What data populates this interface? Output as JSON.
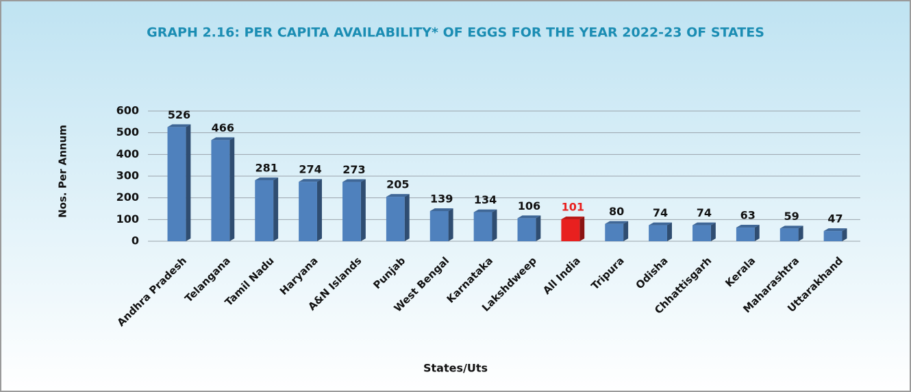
{
  "chart_data": {
    "type": "bar",
    "title": "GRAPH 2.16: PER CAPITA AVAILABILITY* OF EGGS FOR THE YEAR  2022-23 OF STATES",
    "xlabel": "States/Uts",
    "ylabel": "Nos. Per Annum",
    "categories": [
      "Andhra Pradesh",
      "Telangana",
      "Tamil Nadu",
      "Haryana",
      "A&N Islands",
      "Punjab",
      "West Bengal",
      "Karnataka",
      "Lakshdweep",
      "All India",
      "Tripura",
      "Odisha",
      "Chhattisgarh",
      "Kerala",
      "Maharashtra",
      "Uttarakhand"
    ],
    "values": [
      526,
      466,
      281,
      274,
      273,
      205,
      139,
      134,
      106,
      101,
      80,
      74,
      74,
      63,
      59,
      47
    ],
    "color": "#4f81bd",
    "colors": [
      "#4f81bd",
      "#4f81bd",
      "#4f81bd",
      "#4f81bd",
      "#4f81bd",
      "#4f81bd",
      "#4f81bd",
      "#4f81bd",
      "#4f81bd",
      "#e8201f",
      "#4f81bd",
      "#4f81bd",
      "#4f81bd",
      "#4f81bd",
      "#4f81bd",
      "#4f81bd"
    ],
    "ylim": [
      0,
      600
    ],
    "yticks": [
      0,
      100,
      200,
      300,
      400,
      500,
      600
    ],
    "grid": true
  }
}
